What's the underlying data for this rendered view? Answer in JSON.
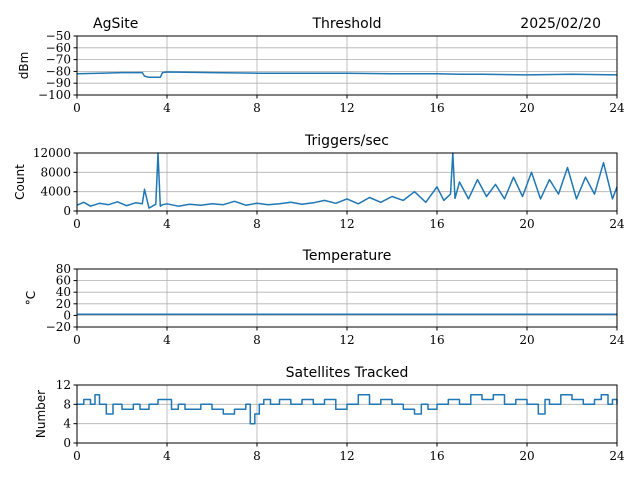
{
  "header": {
    "site": "AgSite",
    "date": "2025/02/20"
  },
  "colors": {
    "series": "#1f77b4",
    "grid": "#b0b0b0",
    "axis": "#000000"
  },
  "chart_data": [
    {
      "type": "line",
      "title": "Threshold",
      "ylabel": "dBm",
      "xlim": [
        0,
        24
      ],
      "ylim": [
        -100,
        -50
      ],
      "xticks": [
        0,
        4,
        8,
        12,
        16,
        20,
        24
      ],
      "yticks": [
        -100,
        -90,
        -80,
        -70,
        -60,
        -50
      ],
      "ytick_labels": [
        "−100",
        "−90",
        "−80",
        "−70",
        "−60",
        "−50"
      ],
      "grid": true,
      "series": [
        {
          "x": [
            0,
            1,
            2,
            2.9,
            3.0,
            3.2,
            3.7,
            3.8,
            4,
            6,
            8,
            10,
            12,
            14,
            16,
            17,
            18,
            20,
            22,
            24
          ],
          "y": [
            -82,
            -81.5,
            -81,
            -81,
            -84,
            -85,
            -85,
            -81,
            -80.5,
            -81,
            -81.5,
            -81.5,
            -81.5,
            -82,
            -82,
            -82.5,
            -82.5,
            -83,
            -82.5,
            -83
          ]
        }
      ]
    },
    {
      "type": "line",
      "title": "Triggers/sec",
      "ylabel": "Count",
      "xlim": [
        0,
        24
      ],
      "ylim": [
        0,
        12000
      ],
      "xticks": [
        0,
        4,
        8,
        12,
        16,
        20,
        24
      ],
      "yticks": [
        0,
        4000,
        8000,
        12000
      ],
      "ytick_labels": [
        "0",
        "4000",
        "8000",
        "12000"
      ],
      "grid": true,
      "series": [
        {
          "x": [
            0,
            0.3,
            0.6,
            1.0,
            1.4,
            1.8,
            2.2,
            2.6,
            2.9,
            3.0,
            3.2,
            3.5,
            3.6,
            3.7,
            3.8,
            4.0,
            4.5,
            5.0,
            5.5,
            6.0,
            6.5,
            7.0,
            7.5,
            8.0,
            8.5,
            9.0,
            9.5,
            10.0,
            10.5,
            11.0,
            11.5,
            12.0,
            12.5,
            13.0,
            13.5,
            14.0,
            14.5,
            15.0,
            15.5,
            16.0,
            16.3,
            16.6,
            16.7,
            16.8,
            17.0,
            17.4,
            17.8,
            18.2,
            18.6,
            19.0,
            19.4,
            19.8,
            20.2,
            20.6,
            21.0,
            21.4,
            21.8,
            22.2,
            22.6,
            23.0,
            23.4,
            23.8,
            24.0
          ],
          "y": [
            1200,
            1800,
            1000,
            1600,
            1300,
            1900,
            1100,
            1700,
            1500,
            4500,
            600,
            1400,
            12000,
            1000,
            1300,
            1500,
            1000,
            1400,
            1200,
            1500,
            1300,
            2000,
            1200,
            1600,
            1300,
            1500,
            1800,
            1400,
            1700,
            2200,
            1600,
            2500,
            1500,
            2800,
            1800,
            3000,
            2200,
            4000,
            1800,
            5000,
            2200,
            3500,
            12000,
            2600,
            6000,
            2500,
            6500,
            3000,
            5500,
            2500,
            7000,
            3000,
            8000,
            2500,
            6500,
            3500,
            9000,
            2500,
            7000,
            3500,
            10000,
            2500,
            5000
          ]
        }
      ]
    },
    {
      "type": "line",
      "title": "Temperature",
      "ylabel": "°C",
      "xlim": [
        0,
        24
      ],
      "ylim": [
        -20,
        80
      ],
      "xticks": [
        0,
        4,
        8,
        12,
        16,
        20,
        24
      ],
      "yticks": [
        -20,
        0,
        20,
        40,
        60,
        80
      ],
      "ytick_labels": [
        "−20",
        "0",
        "20",
        "40",
        "60",
        "80"
      ],
      "grid": true,
      "series": [
        {
          "x": [
            0,
            24
          ],
          "y": [
            2,
            2
          ]
        }
      ]
    },
    {
      "type": "line",
      "title": "Satellites Tracked",
      "ylabel": "Number",
      "xlim": [
        0,
        24
      ],
      "ylim": [
        0,
        12
      ],
      "xticks": [
        0,
        4,
        8,
        12,
        16,
        20,
        24
      ],
      "yticks": [
        0,
        4,
        8,
        12
      ],
      "ytick_labels": [
        "0",
        "4",
        "8",
        "12"
      ],
      "grid": true,
      "series": [
        {
          "step": true,
          "x": [
            0,
            0.3,
            0.6,
            0.8,
            1.0,
            1.3,
            1.6,
            2.0,
            2.5,
            2.8,
            3.2,
            3.6,
            4.2,
            4.5,
            4.8,
            5.5,
            6.0,
            6.5,
            7.0,
            7.5,
            7.7,
            7.9,
            8.1,
            8.3,
            8.6,
            9.0,
            9.5,
            10.0,
            10.5,
            11.0,
            11.5,
            12.0,
            12.5,
            13.0,
            13.5,
            14.0,
            14.5,
            15.0,
            15.3,
            15.6,
            16.0,
            16.5,
            17.0,
            17.5,
            18.0,
            18.5,
            19.0,
            19.5,
            20.0,
            20.5,
            20.8,
            21.0,
            21.5,
            22.0,
            22.5,
            23.0,
            23.3,
            23.6,
            23.8,
            24.0
          ],
          "y": [
            8,
            9,
            8,
            10,
            8,
            6,
            8,
            7,
            8,
            7,
            8,
            9,
            7,
            8,
            7,
            8,
            7,
            6,
            7,
            8,
            4,
            6,
            8,
            9,
            8,
            9,
            8,
            9,
            8,
            9,
            7,
            8,
            10,
            8,
            9,
            8,
            7,
            6,
            8,
            7,
            8,
            9,
            8,
            10,
            9,
            10,
            8,
            9,
            8,
            6,
            9,
            8,
            10,
            9,
            8,
            9,
            10,
            8,
            9,
            8
          ]
        }
      ]
    }
  ]
}
